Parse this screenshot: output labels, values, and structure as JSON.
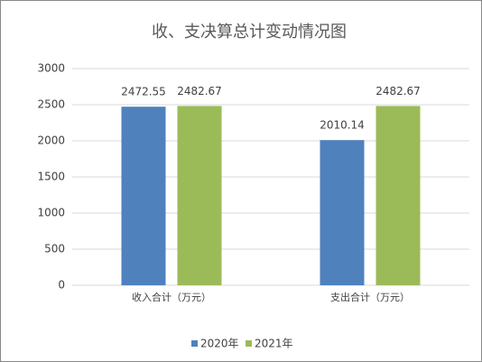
{
  "chart_data": {
    "type": "bar",
    "title": "收、支决算总计变动情况图",
    "categories": [
      "收入合计（万元）",
      "支出合计（万元）"
    ],
    "series": [
      {
        "name": "2020年",
        "color": "#4f81bd",
        "values": [
          2472.55,
          2010.14
        ]
      },
      {
        "name": "2021年",
        "color": "#9bbb59",
        "values": [
          2482.67,
          2482.67
        ]
      }
    ],
    "ylim": [
      0,
      3000
    ],
    "yticks": [
      0,
      500,
      1000,
      1500,
      2000,
      2500,
      3000
    ],
    "grid": true,
    "legend": "bottom"
  }
}
